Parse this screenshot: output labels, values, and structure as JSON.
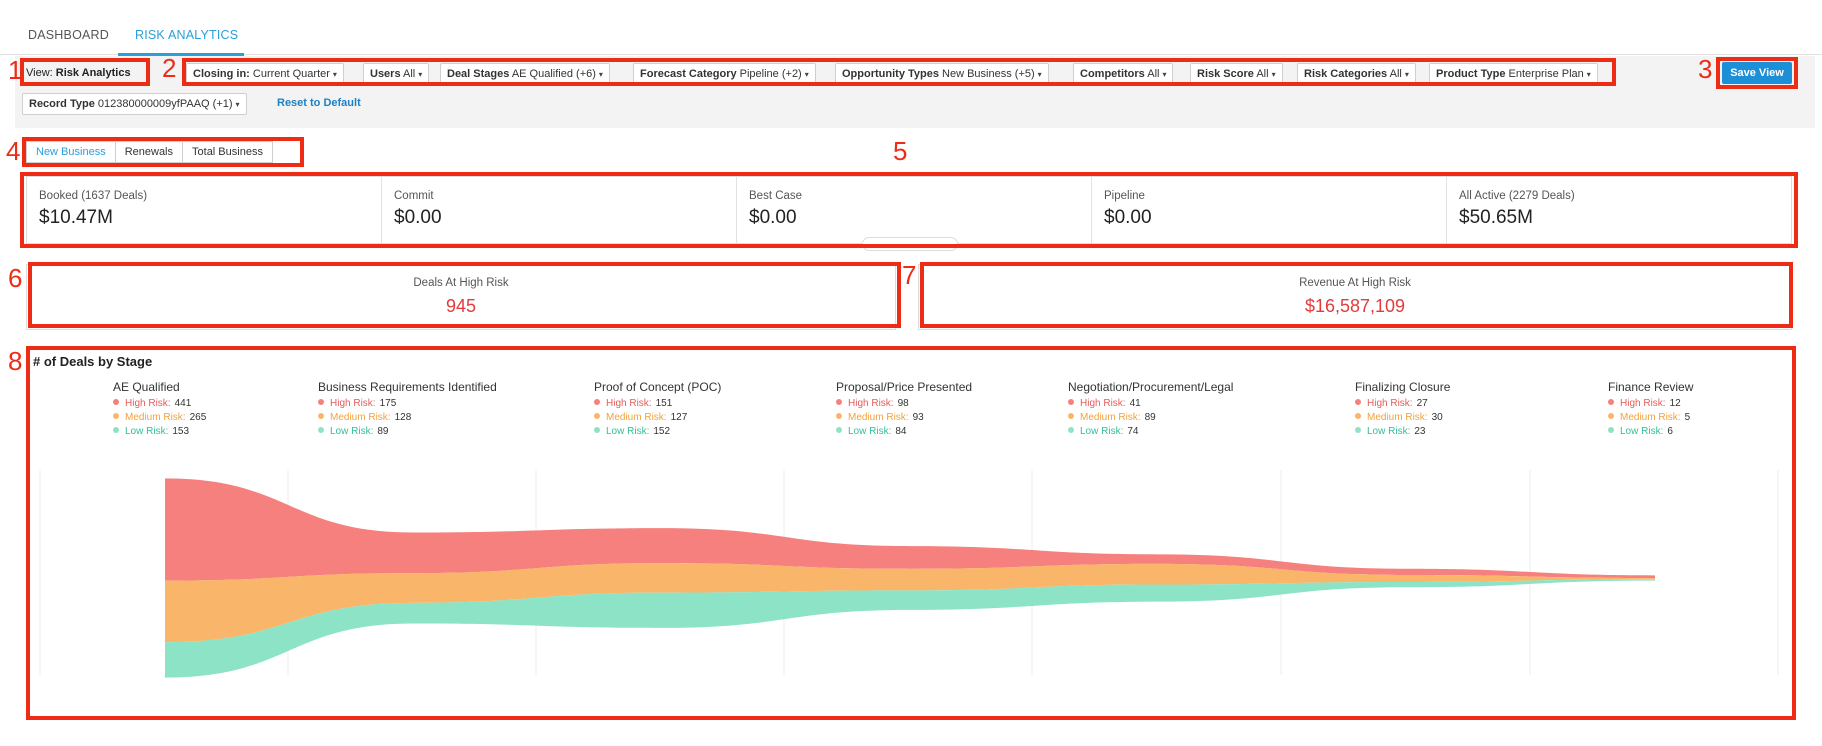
{
  "nav": {
    "tabs": [
      "DASHBOARD",
      "RISK ANALYTICS"
    ]
  },
  "filters": {
    "view_label": "View:",
    "view_value": "Risk Analytics",
    "chips": [
      {
        "label": "Closing in:",
        "value": "Current Quarter"
      },
      {
        "label": "Users",
        "value": "All"
      },
      {
        "label": "Deal Stages",
        "value": "AE Qualified (+6)"
      },
      {
        "label": "Forecast Category",
        "value": "Pipeline (+2)"
      },
      {
        "label": "Opportunity Types",
        "value": "New Business (+5)"
      },
      {
        "label": "Competitors",
        "value": "All"
      },
      {
        "label": "Risk Score",
        "value": "All"
      },
      {
        "label": "Risk Categories",
        "value": "All"
      },
      {
        "label": "Product Type",
        "value": "Enterprise Plan"
      },
      {
        "label": "Record Type",
        "value": "012380000009yfPAAQ (+1)"
      }
    ],
    "reset_label": "Reset to Default",
    "save_label": "Save View"
  },
  "business_tabs": [
    "New Business",
    "Renewals",
    "Total Business"
  ],
  "summary": [
    {
      "label": "Booked (1637 Deals)",
      "value": "$10.47M"
    },
    {
      "label": "Commit",
      "value": "$0.00"
    },
    {
      "label": "Best Case",
      "value": "$0.00"
    },
    {
      "label": "Pipeline",
      "value": "$0.00"
    },
    {
      "label": "All Active (2279 Deals)",
      "value": "$50.65M"
    }
  ],
  "risk_cards": [
    {
      "label": "Deals At High Risk",
      "value": "945"
    },
    {
      "label": "Revenue At High Risk",
      "value": "$16,587,109"
    }
  ],
  "chart_data": {
    "type": "area",
    "title": "# of Deals by Stage",
    "risk_labels": [
      "High Risk:",
      "Medium Risk:",
      "Low Risk:"
    ],
    "categories": [
      "AE Qualified",
      "Business Requirements Identified",
      "Proof of Concept (POC)",
      "Proposal/Price Presented",
      "Negotiation/Procurement/Legal",
      "Finalizing Closure",
      "Finance Review"
    ],
    "series": [
      {
        "name": "High Risk",
        "color": "#f5807d",
        "values": [
          441,
          175,
          151,
          98,
          41,
          27,
          12
        ]
      },
      {
        "name": "Medium Risk",
        "color": "#f9b56a",
        "values": [
          265,
          128,
          127,
          93,
          89,
          30,
          5
        ]
      },
      {
        "name": "Low Risk",
        "color": "#8de3c6",
        "values": [
          153,
          89,
          152,
          84,
          74,
          23,
          6
        ]
      }
    ]
  },
  "annotations": [
    "1",
    "2",
    "3",
    "4",
    "5",
    "6",
    "7",
    "8"
  ]
}
